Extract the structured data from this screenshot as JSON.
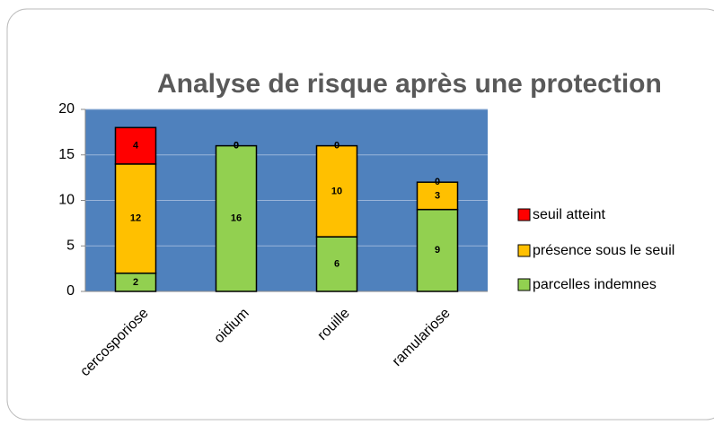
{
  "chart_data": {
    "type": "stacked-bar",
    "title": "Analyse de risque après une protection",
    "categories": [
      "cercosporiose",
      "oidium",
      "rouille",
      "ramulariose"
    ],
    "series": [
      {
        "name": "parcelles indemnes",
        "color": "#92d050",
        "values": [
          2,
          16,
          6,
          9
        ]
      },
      {
        "name": "présence sous le seuil",
        "color": "#ffc000",
        "values": [
          12,
          0,
          10,
          3
        ]
      },
      {
        "name": "seuil atteint",
        "color": "#ff0000",
        "values": [
          4,
          0,
          0,
          0
        ]
      }
    ],
    "ylim": [
      0,
      20
    ],
    "yticks": [
      0,
      5,
      10,
      15,
      20
    ],
    "grid": true,
    "plot_background": "#4f81bd",
    "legend": "right"
  }
}
